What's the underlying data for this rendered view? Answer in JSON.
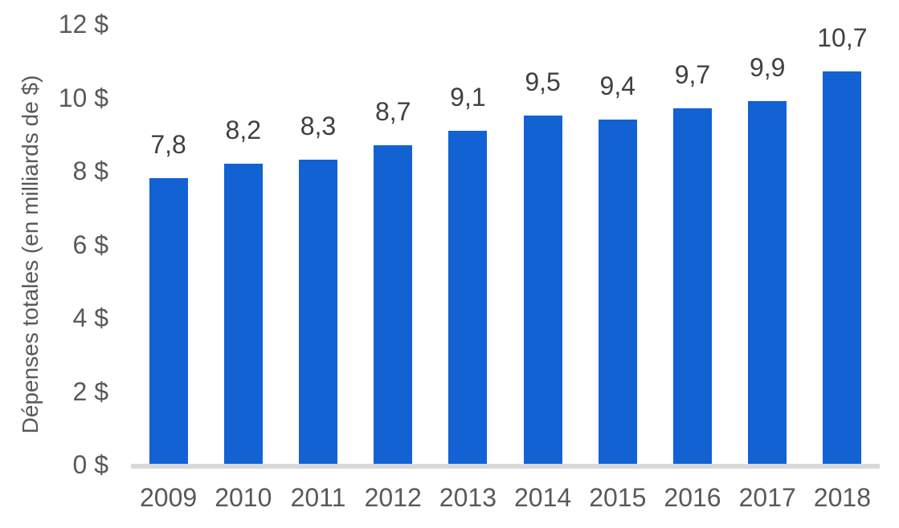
{
  "chart_data": {
    "type": "bar",
    "title": "",
    "xlabel": "",
    "ylabel": "Dépenses totales (en milliards de $)",
    "categories": [
      "2009",
      "2010",
      "2011",
      "2012",
      "2013",
      "2014",
      "2015",
      "2016",
      "2017",
      "2018"
    ],
    "values": [
      7.8,
      8.2,
      8.3,
      8.7,
      9.1,
      9.5,
      9.4,
      9.7,
      9.9,
      10.7
    ],
    "value_labels": [
      "7,8",
      "8,2",
      "8,3",
      "8,7",
      "9,1",
      "9,5",
      "9,4",
      "9,7",
      "9,9",
      "10,7"
    ],
    "y_ticks": [
      {
        "label": "0 $",
        "value": 0
      },
      {
        "label": "2 $",
        "value": 2
      },
      {
        "label": "4 $",
        "value": 4
      },
      {
        "label": "6 $",
        "value": 6
      },
      {
        "label": "8 $",
        "value": 8
      },
      {
        "label": "10 $",
        "value": 10
      },
      {
        "label": "12 $",
        "value": 12
      }
    ],
    "ylim": [
      0,
      12
    ],
    "grid": false,
    "legend": null,
    "colors": {
      "bar": "#1262d4",
      "baseline": "#d9d9d9",
      "axis_text": "#595959",
      "data_label": "#404040"
    }
  }
}
